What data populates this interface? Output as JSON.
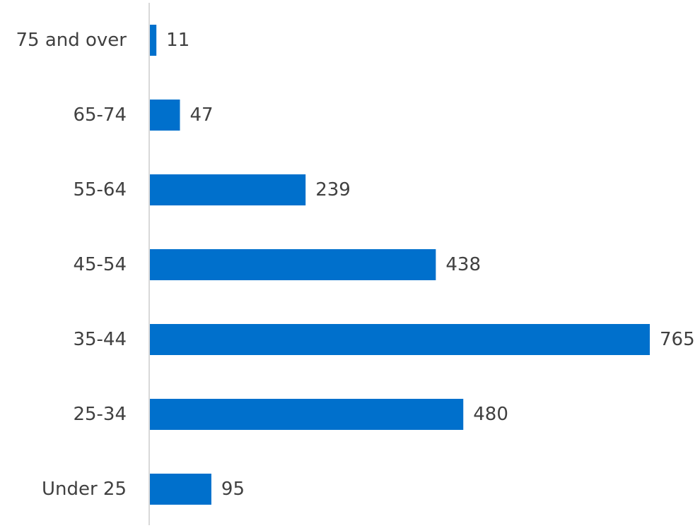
{
  "chart_data": {
    "type": "bar",
    "orientation": "horizontal",
    "categories": [
      "75 and over",
      "65-74",
      "55-64",
      "45-54",
      "35-44",
      "25-34",
      "Under 25"
    ],
    "values": [
      11,
      47,
      239,
      438,
      765,
      480,
      95
    ],
    "title": "",
    "xlabel": "",
    "ylabel": "",
    "xlim": [
      0,
      765
    ],
    "grid": false,
    "legend": "none",
    "data_labels": true,
    "colors": {
      "bar": "#0070CC",
      "axis": "#D9D9D9",
      "text": "#404040"
    }
  }
}
